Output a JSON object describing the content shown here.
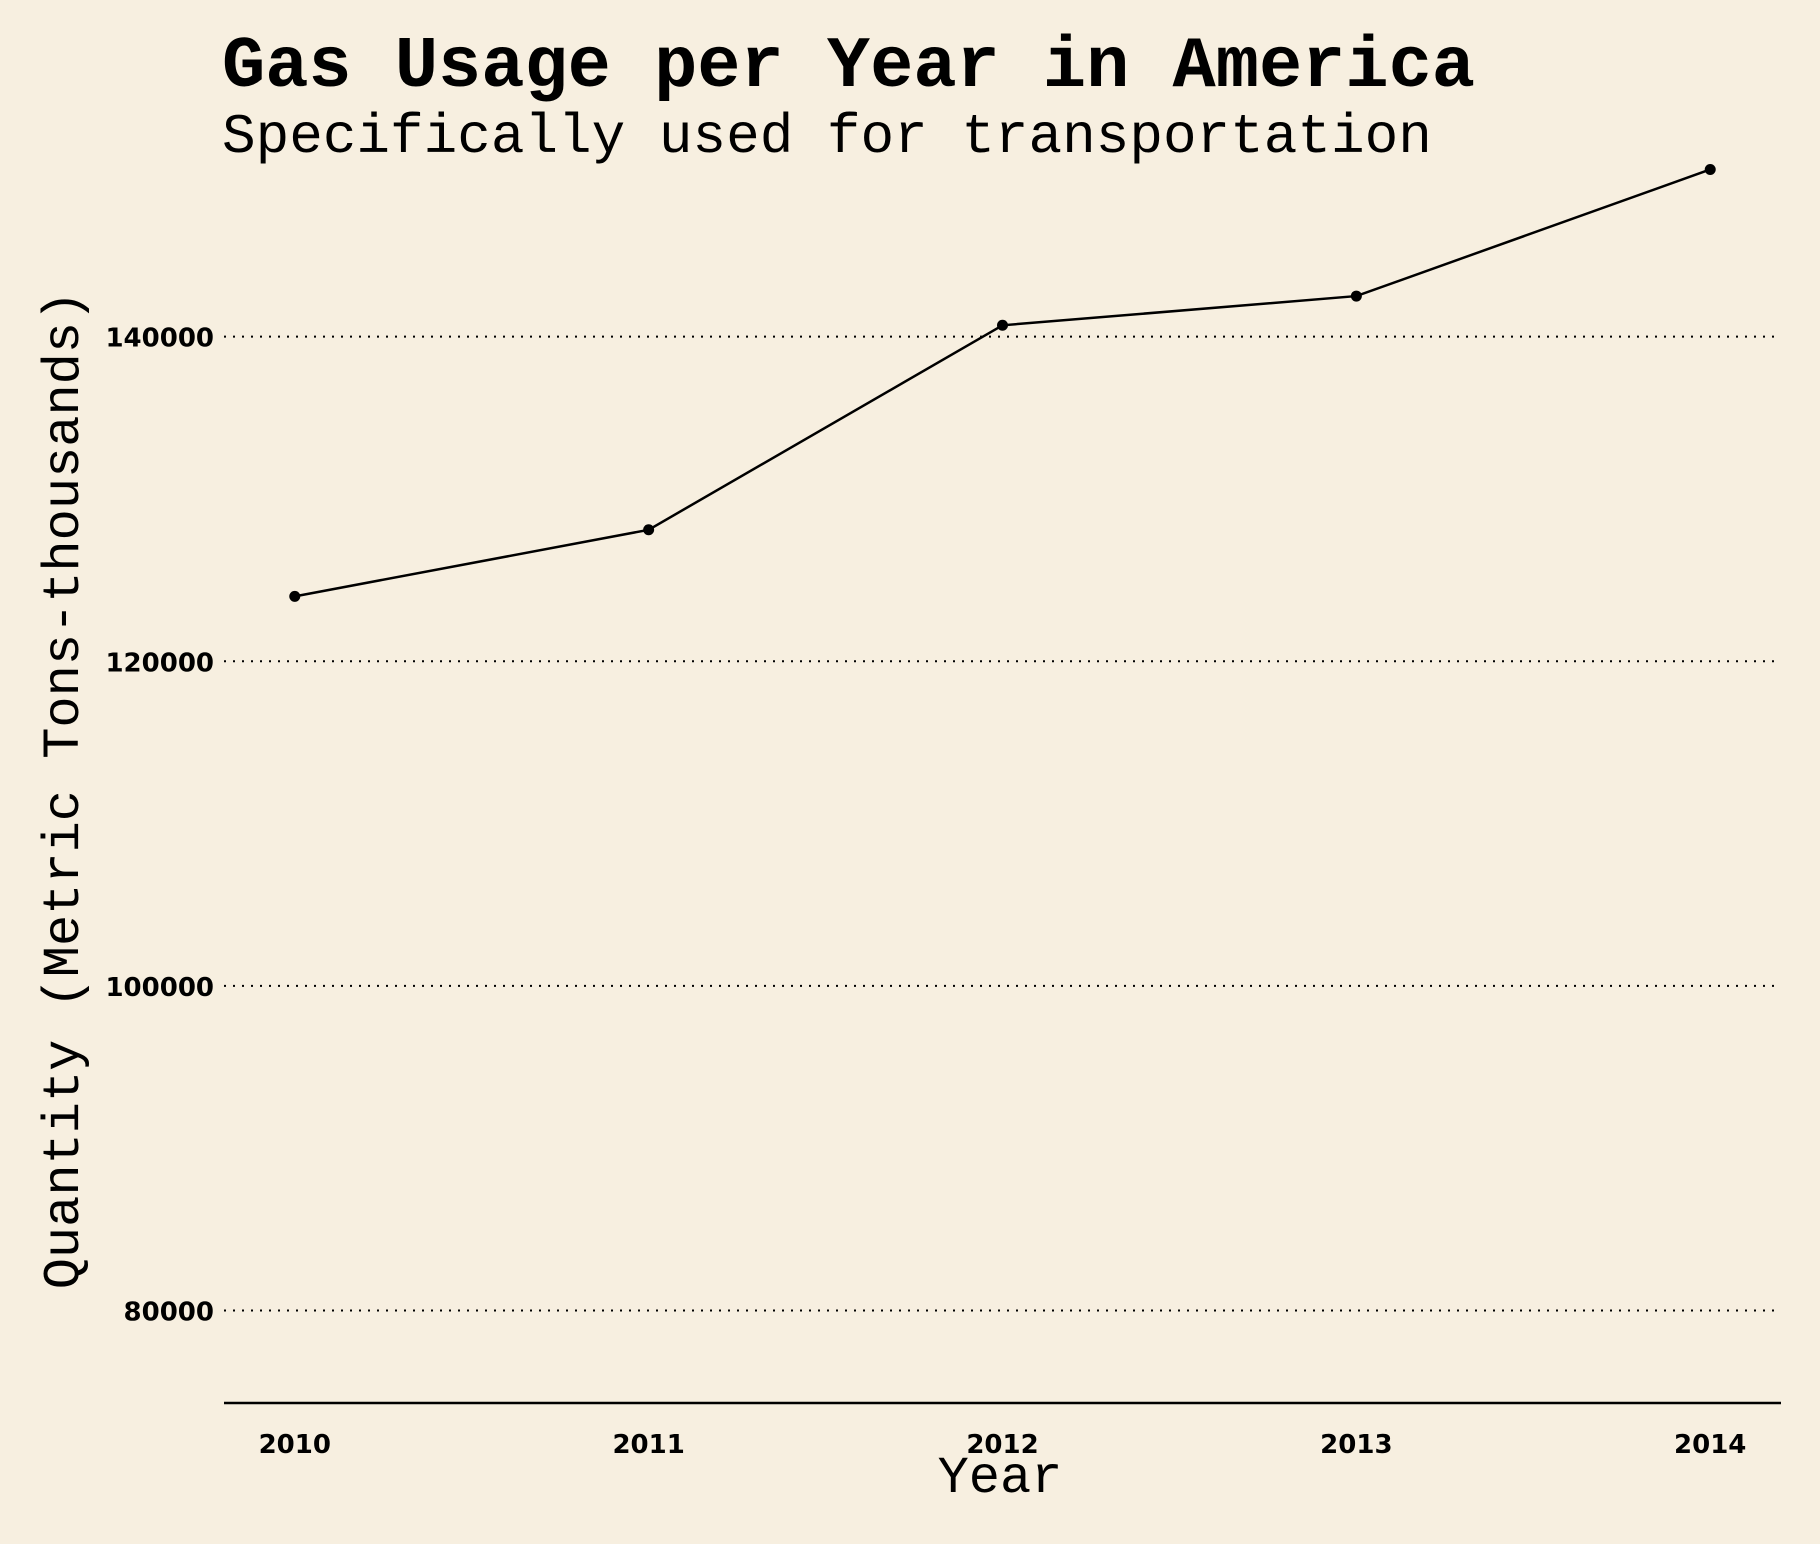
{
  "chart_data": {
    "type": "line",
    "title": "Gas Usage per Year in America",
    "subtitle": "Specifically used for transportation",
    "xlabel": "Year",
    "ylabel": "Quantity (Metric Tons-thousands)",
    "x": [
      2010,
      2011,
      2012,
      2013,
      2014
    ],
    "x_tick_labels": [
      "2010",
      "2011",
      "2012",
      "2013",
      "2014"
    ],
    "xlim": [
      2009.8,
      2014.2
    ],
    "y_ticks": [
      80000,
      100000,
      120000,
      140000
    ],
    "y_tick_labels": [
      "80000",
      "100000",
      "120000",
      "140000"
    ],
    "ylim": [
      74300,
      151500
    ],
    "grid": "horizontal dotted",
    "series": [
      {
        "values": [
          124000,
          128100,
          140700,
          142500,
          150300
        ],
        "color": "#000000"
      }
    ]
  },
  "colors": {
    "background": "#f7efe0",
    "ink": "#000000"
  }
}
